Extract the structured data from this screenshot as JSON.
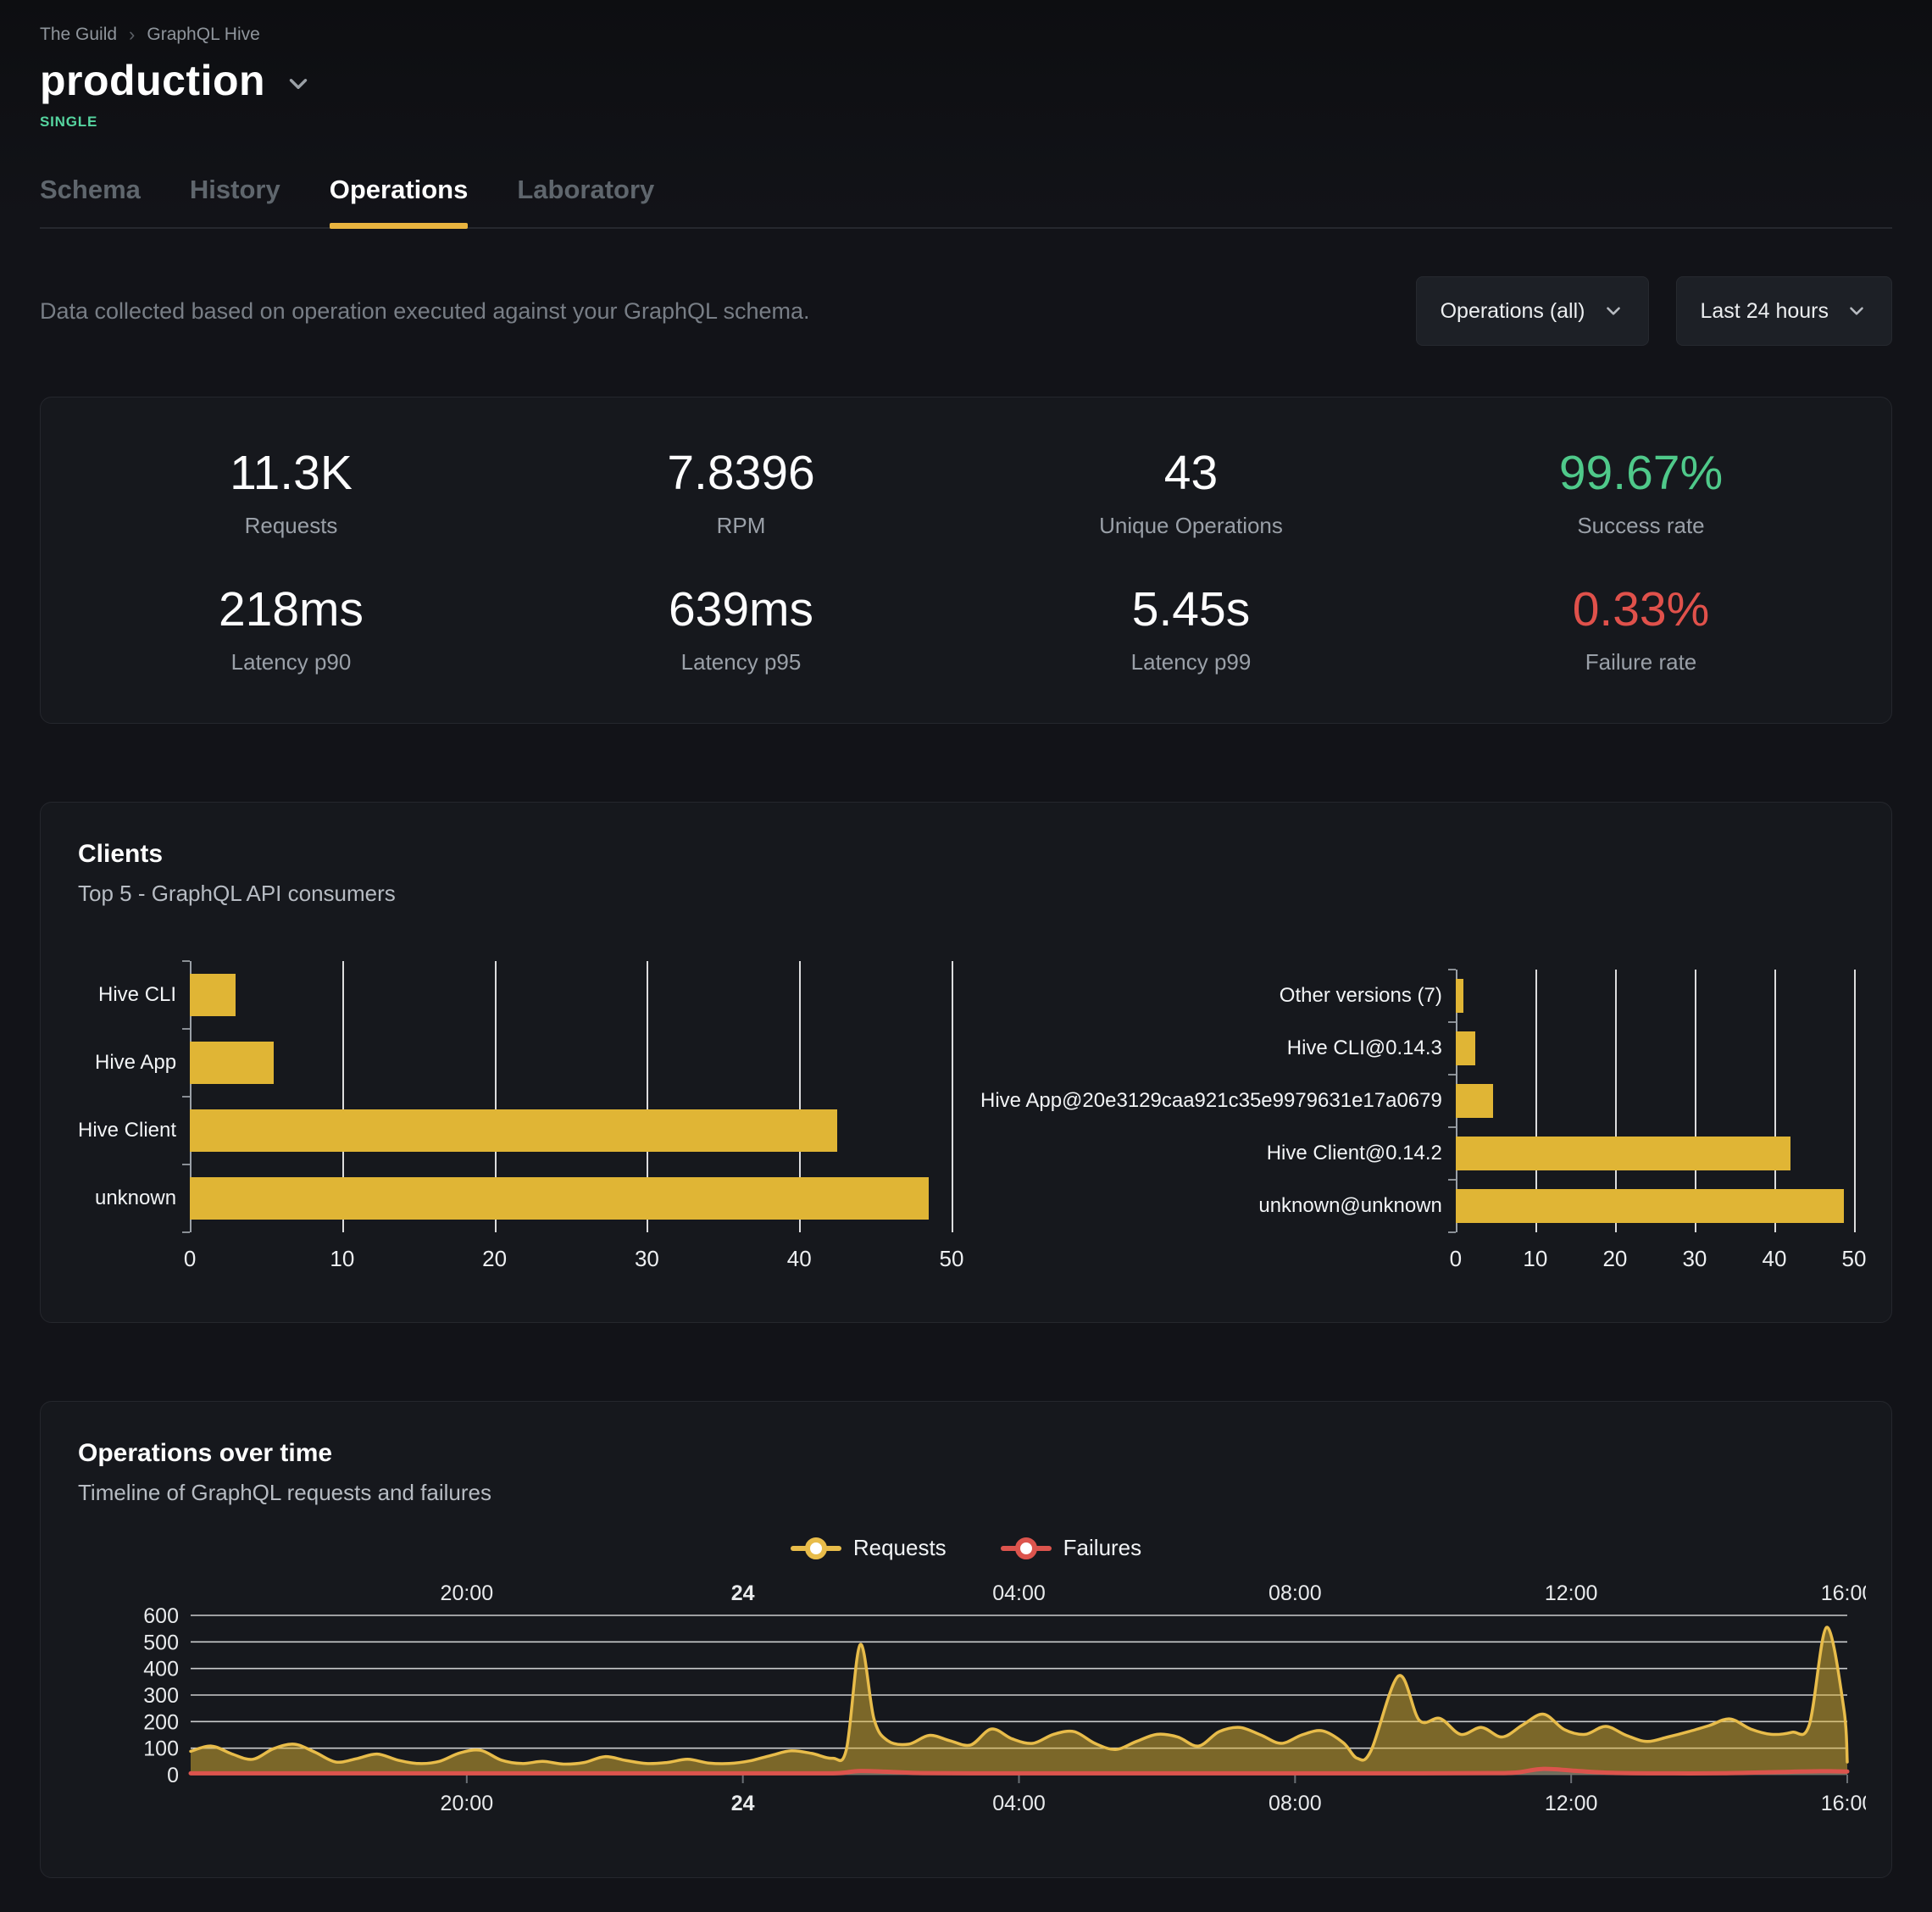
{
  "colors": {
    "accent_yellow": "#e0b535",
    "area_stroke": "#e8bc4a",
    "failures_red": "#dc544d",
    "success_green": "#4fc98a",
    "failure_rate_red": "#e0514b",
    "badge_teal": "#56d5a0",
    "tab_underline": "#e9b43f"
  },
  "breadcrumb": {
    "org": "The Guild",
    "project": "GraphQL Hive"
  },
  "target": {
    "name": "production",
    "badge": "SINGLE"
  },
  "tabs": [
    {
      "label": "Schema"
    },
    {
      "label": "History"
    },
    {
      "label": "Operations",
      "active": true
    },
    {
      "label": "Laboratory"
    }
  ],
  "filters": {
    "description": "Data collected based on operation executed against your GraphQL schema.",
    "operations_filter": "Operations (all)",
    "period_filter": "Last 24 hours"
  },
  "stats": [
    {
      "value": "11.3K",
      "label": "Requests"
    },
    {
      "value": "7.8396",
      "label": "RPM"
    },
    {
      "value": "43",
      "label": "Unique Operations"
    },
    {
      "value": "99.67%",
      "label": "Success rate"
    },
    {
      "value": "218ms",
      "label": "Latency p90"
    },
    {
      "value": "639ms",
      "label": "Latency p95"
    },
    {
      "value": "5.45s",
      "label": "Latency p99"
    },
    {
      "value": "0.33%",
      "label": "Failure rate"
    }
  ],
  "clients_section": {
    "title": "Clients",
    "subtitle": "Top 5 - GraphQL API consumers"
  },
  "timeline_section": {
    "title": "Operations over time",
    "subtitle": "Timeline of GraphQL requests and failures"
  },
  "chart_data": [
    {
      "id": "clients-by-name",
      "type": "bar",
      "orientation": "horizontal",
      "categories": [
        "Hive CLI",
        "Hive App",
        "Hive Client",
        "unknown"
      ],
      "values": [
        3,
        5.5,
        42.5,
        48.5
      ],
      "xlim": [
        0,
        50
      ],
      "xticks": [
        0,
        10,
        20,
        30,
        40,
        50
      ],
      "bar_color": "#e0b535",
      "grid": true
    },
    {
      "id": "clients-by-version",
      "type": "bar",
      "orientation": "horizontal",
      "categories": [
        "Other versions (7)",
        "Hive CLI@0.14.3",
        "Hive App@20e3129caa921c35e9979631e17a0679",
        "Hive Client@0.14.2",
        "unknown@unknown"
      ],
      "values": [
        1,
        2.5,
        4.7,
        42,
        48.7
      ],
      "xlim": [
        0,
        50
      ],
      "xticks": [
        0,
        10,
        20,
        30,
        40,
        50
      ],
      "bar_color": "#e0b535",
      "grid": true
    },
    {
      "id": "operations-over-time",
      "type": "area",
      "x_unit": "hours since 16:00 previous day",
      "xlim": [
        0,
        24
      ],
      "ylim": [
        0,
        600
      ],
      "yticks": [
        0,
        100,
        200,
        300,
        400,
        500,
        600
      ],
      "xticks": [
        {
          "t": 4,
          "label": "20:00"
        },
        {
          "t": 8,
          "label": "24",
          "bold": true
        },
        {
          "t": 12,
          "label": "04:00"
        },
        {
          "t": 16,
          "label": "08:00"
        },
        {
          "t": 20,
          "label": "12:00"
        },
        {
          "t": 24,
          "label": "16:00"
        }
      ],
      "grid": true,
      "legend_position": "top-center",
      "series": [
        {
          "name": "Requests",
          "color": "#e0b535",
          "points": [
            [
              0,
              88
            ],
            [
              0.3,
              108
            ],
            [
              0.6,
              78
            ],
            [
              0.9,
              58
            ],
            [
              1.2,
              98
            ],
            [
              1.5,
              115
            ],
            [
              1.8,
              85
            ],
            [
              2.1,
              48
            ],
            [
              2.4,
              60
            ],
            [
              2.7,
              78
            ],
            [
              3,
              55
            ],
            [
              3.3,
              42
            ],
            [
              3.6,
              50
            ],
            [
              3.9,
              82
            ],
            [
              4.2,
              92
            ],
            [
              4.5,
              55
            ],
            [
              4.8,
              42
            ],
            [
              5.1,
              50
            ],
            [
              5.4,
              40
            ],
            [
              5.7,
              46
            ],
            [
              6,
              68
            ],
            [
              6.3,
              54
            ],
            [
              6.6,
              42
            ],
            [
              6.9,
              46
            ],
            [
              7.2,
              58
            ],
            [
              7.5,
              44
            ],
            [
              7.8,
              42
            ],
            [
              8.1,
              52
            ],
            [
              8.4,
              72
            ],
            [
              8.7,
              90
            ],
            [
              9,
              80
            ],
            [
              9.3,
              62
            ],
            [
              9.5,
              96
            ],
            [
              9.7,
              490
            ],
            [
              9.9,
              210
            ],
            [
              10.1,
              128
            ],
            [
              10.4,
              115
            ],
            [
              10.7,
              148
            ],
            [
              11,
              128
            ],
            [
              11.3,
              112
            ],
            [
              11.6,
              172
            ],
            [
              11.9,
              135
            ],
            [
              12.2,
              118
            ],
            [
              12.5,
              152
            ],
            [
              12.8,
              162
            ],
            [
              13.1,
              118
            ],
            [
              13.4,
              95
            ],
            [
              13.7,
              125
            ],
            [
              14,
              152
            ],
            [
              14.3,
              142
            ],
            [
              14.6,
              108
            ],
            [
              14.9,
              162
            ],
            [
              15.2,
              178
            ],
            [
              15.5,
              150
            ],
            [
              15.8,
              118
            ],
            [
              16.1,
              150
            ],
            [
              16.4,
              165
            ],
            [
              16.7,
              120
            ],
            [
              16.9,
              62
            ],
            [
              17.1,
              90
            ],
            [
              17.5,
              372
            ],
            [
              17.8,
              205
            ],
            [
              18.1,
              212
            ],
            [
              18.4,
              152
            ],
            [
              18.7,
              178
            ],
            [
              19,
              142
            ],
            [
              19.3,
              188
            ],
            [
              19.6,
              228
            ],
            [
              19.9,
              170
            ],
            [
              20.2,
              152
            ],
            [
              20.5,
              182
            ],
            [
              20.8,
              148
            ],
            [
              21.1,
              125
            ],
            [
              21.4,
              142
            ],
            [
              21.7,
              162
            ],
            [
              22,
              185
            ],
            [
              22.3,
              210
            ],
            [
              22.6,
              172
            ],
            [
              22.9,
              152
            ],
            [
              23.2,
              160
            ],
            [
              23.45,
              188
            ],
            [
              23.7,
              555
            ],
            [
              23.95,
              250
            ],
            [
              24,
              48
            ]
          ]
        },
        {
          "name": "Failures",
          "color": "#dc544d",
          "points": [
            [
              0,
              5
            ],
            [
              1,
              5
            ],
            [
              2,
              5
            ],
            [
              3,
              5
            ],
            [
              4,
              5
            ],
            [
              5,
              5
            ],
            [
              6,
              5
            ],
            [
              7,
              5
            ],
            [
              8,
              5
            ],
            [
              9,
              5
            ],
            [
              9.4,
              6
            ],
            [
              9.7,
              14
            ],
            [
              10.2,
              10
            ],
            [
              10.6,
              6
            ],
            [
              11.5,
              5
            ],
            [
              13,
              5
            ],
            [
              14.5,
              5
            ],
            [
              16,
              5
            ],
            [
              17.5,
              5
            ],
            [
              18.8,
              6
            ],
            [
              19.2,
              8
            ],
            [
              19.6,
              22
            ],
            [
              20.1,
              14
            ],
            [
              20.6,
              7
            ],
            [
              21.5,
              5
            ],
            [
              22.3,
              6
            ],
            [
              23,
              10
            ],
            [
              23.6,
              13
            ],
            [
              24,
              12
            ]
          ]
        }
      ]
    }
  ]
}
